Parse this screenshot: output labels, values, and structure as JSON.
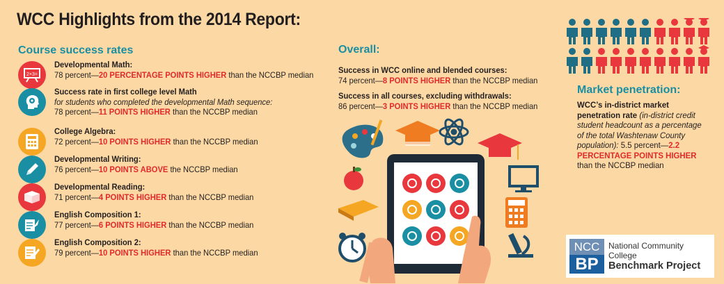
{
  "title": "WCC Highlights from the 2014 Report:",
  "course_success": {
    "heading": "Course success rates",
    "items": [
      {
        "name": "Developmental Math:",
        "pre": "78 percent—",
        "highlight": "20 PERCENTAGE POINTS HIGHER",
        "post": " than the NCCBP median",
        "color": "#e8383d",
        "icon": "chalkboard-icon",
        "icon_text": "2×3="
      },
      {
        "name": "Success rate in first college level Math",
        "note": "for students who completed the developmental Math sequence:",
        "pre": "78 percent—",
        "highlight": "11 POINTS HIGHER",
        "post": " than the NCCBP median",
        "color": "#1a8fa3",
        "icon": "head-gear-icon"
      },
      {
        "name": "College Algebra:",
        "pre": "72 percent—",
        "highlight": "10 POINTS HIGHER",
        "post": " than the NCCBP median",
        "color": "#f5a623",
        "icon": "calculator-icon"
      },
      {
        "name": "Developmental Writing:",
        "pre": "76 percent—",
        "highlight": "10 POINTS ABOVE",
        "post": " the NCCBP median",
        "color": "#1a8fa3",
        "icon": "pencil-icon"
      },
      {
        "name": "Developmental Reading:",
        "pre": "71 percent—",
        "highlight": "4 POINTS HIGHER",
        "post": " than the NCCBP median",
        "color": "#e8383d",
        "icon": "book-icon"
      },
      {
        "name": "English Composition 1:",
        "pre": "77 percent—",
        "highlight": "6 POINTS HIGHER",
        "post": " than the NCCBP median",
        "color": "#1a8fa3",
        "icon": "quill-icon"
      },
      {
        "name": "English Composition 2:",
        "pre": "79 percent—",
        "highlight": "10 POINTS HIGHER",
        "post": " than the NCCBP median",
        "color": "#f5a623",
        "icon": "writing-icon"
      }
    ]
  },
  "overall": {
    "heading": "Overall:",
    "items": [
      {
        "label": "Success in WCC online and blended courses:",
        "pre": "74 percent—",
        "highlight": "8 POINTS HIGHER",
        "post": " than the NCCBP median"
      },
      {
        "label": "Success in all courses, excluding withdrawals:",
        "pre": "86 percent—",
        "highlight": "3 POINTS HIGHER",
        "post": " than the NCCBP median"
      }
    ]
  },
  "market": {
    "heading": "Market penetration:",
    "bold_line": "WCC’s in-district market penetration rate",
    "italic_line": " (in-district credit student headcount as a percentage of the total Washtenaw County population):",
    "pre": " 5.5 percent—",
    "highlight": "2.2 PERCENTAGE POINTS HIGHER",
    "post": " than the NCCBP median"
  },
  "people_graphic": {
    "rows": 2,
    "per_row": 10,
    "blue": "#1f6e86",
    "red": "#e8383d"
  },
  "logo": {
    "mark_top": "NCC",
    "mark_bottom": "BP",
    "line1": "National Community College",
    "line2": "Benchmark Project"
  },
  "colors": {
    "accent_teal": "#1a8fa3",
    "highlight_red": "#e12a2a",
    "background": "#fcd9a4"
  }
}
